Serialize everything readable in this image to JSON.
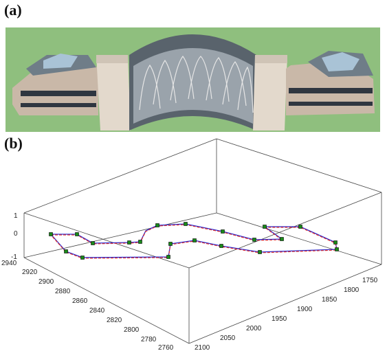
{
  "panels": {
    "a": {
      "label": "(a)",
      "image": "3d-building-model"
    },
    "b": {
      "label": "(b)",
      "image": "3d-trajectory-plot"
    }
  },
  "plot": {
    "z_ticks": [
      "1",
      "0",
      "-1"
    ],
    "x_ticks": [
      "2940",
      "2920",
      "2900",
      "2880",
      "2860",
      "2840",
      "2820",
      "2800",
      "2780",
      "2760"
    ],
    "y_ticks": [
      "2100",
      "2050",
      "2000",
      "1950",
      "1900",
      "1850",
      "1800",
      "1750"
    ]
  },
  "colors": {
    "ground": "#8fbf7e",
    "path_true": "#2a2ad0",
    "path_est": "#e03030",
    "marker": "#1a8a1a"
  }
}
